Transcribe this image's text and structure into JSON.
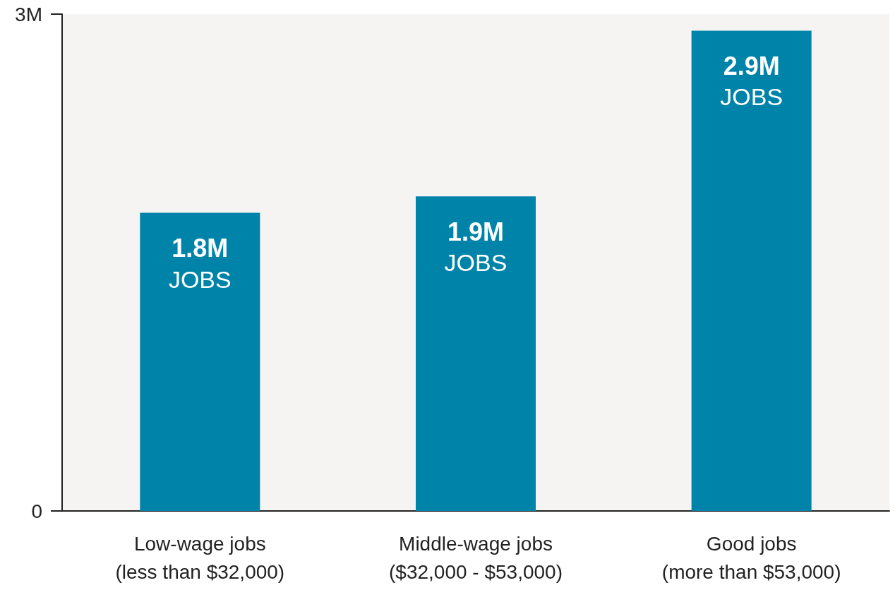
{
  "chart_data": {
    "type": "bar",
    "categories": [
      "Low-wage jobs\n(less than $32,000)",
      "Middle-wage jobs\n($32,000 - $53,000)",
      "Good jobs\n(more than $53,000)"
    ],
    "values": [
      1.8,
      1.9,
      2.9
    ],
    "color": "#0083a9",
    "value_labels": [
      "1.8M JOBS",
      "1.9M JOBS",
      "2.9M JOBS"
    ],
    "ylim": [
      0,
      3
    ],
    "yticks": [
      {
        "value": 0,
        "label": "0"
      },
      {
        "value": 3,
        "label": "3M"
      }
    ],
    "grid": false
  }
}
